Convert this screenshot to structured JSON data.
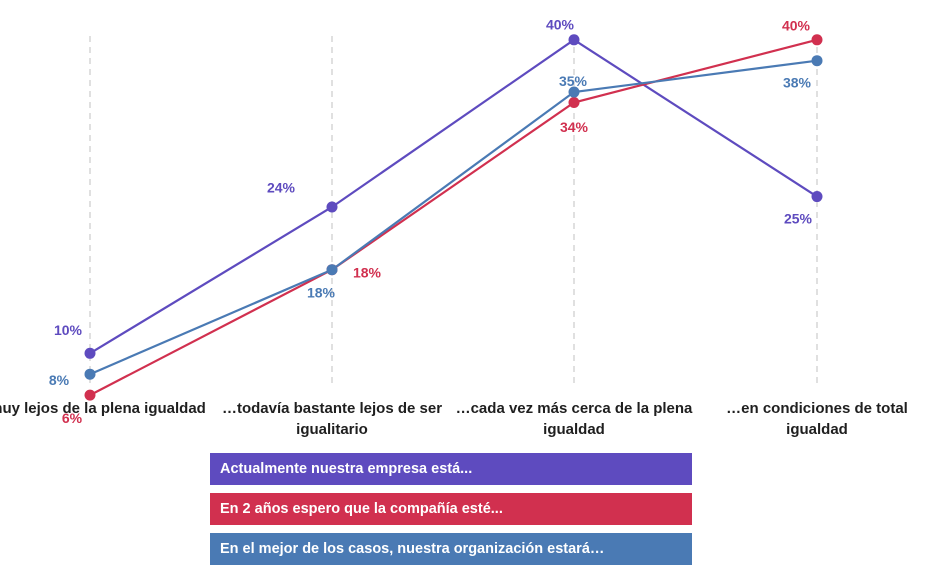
{
  "chart_data": {
    "type": "line",
    "categories": [
      "…muy lejos de la plena igualdad",
      "…todavía bastante lejos de ser igualitario",
      "…cada vez más cerca de la plena igualdad",
      "…en condiciones de total igualdad"
    ],
    "series": [
      {
        "name": "Actualmente nuestra empresa está...",
        "color": "#5e4bbf",
        "values": [
          10,
          24,
          40,
          25
        ]
      },
      {
        "name": "En 2 años espero que la compañía esté...",
        "color": "#d1304f",
        "values": [
          6,
          18,
          34,
          40
        ]
      },
      {
        "name": "En el mejor de los casos, nuestra organización estará…",
        "color": "#4a7ab4",
        "values": [
          8,
          18,
          35,
          38
        ]
      }
    ],
    "value_suffix": "%",
    "grid": "vertical dashed",
    "legend": "bottom"
  }
}
